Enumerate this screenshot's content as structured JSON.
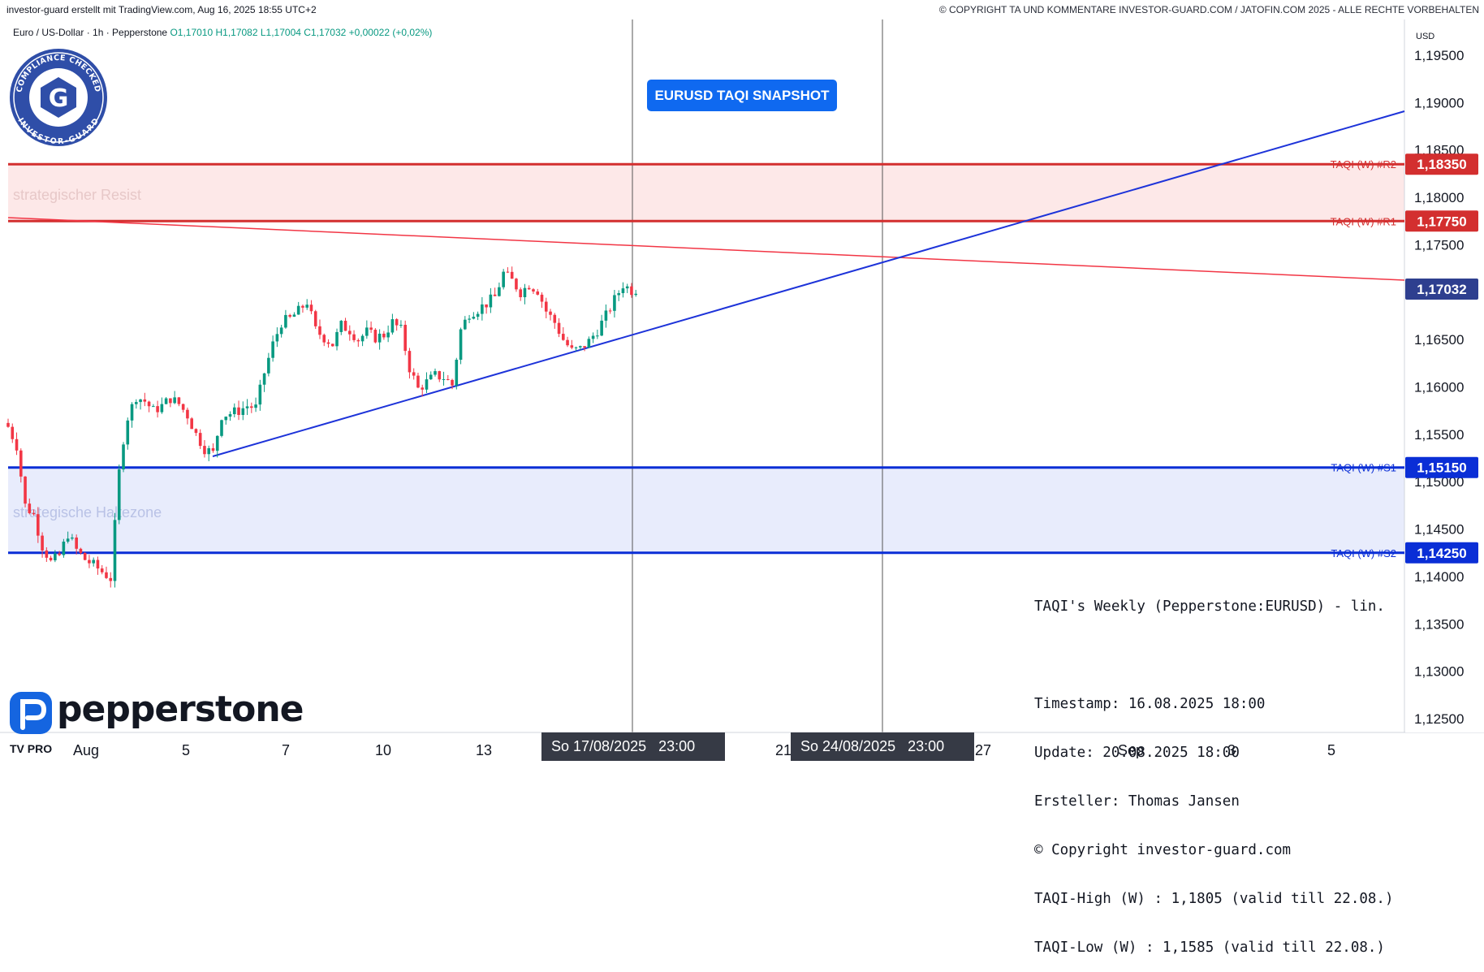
{
  "header": {
    "left": "investor-guard erstellt mit TradingView.com, Aug 16, 2025 18:55 UTC+2",
    "right": "© COPYRIGHT TA UND KOMMENTARE INVESTOR-GUARD.COM / JATOFIN.COM 2025 - ALLE RECHTE VORBEHALTEN"
  },
  "symbol": {
    "name": "Euro / US-Dollar · 1h · Pepperstone",
    "ohlc": "O1,17010 H1,17082 L1,17004 C1,17032 +0,00022 (+0,02%)"
  },
  "badge": {
    "label": "EURUSD TAQI SNAPSHOT",
    "color": "#0f69f0"
  },
  "seal": {
    "text_top": "COMPLIANCE CHECKED",
    "text_bottom": "INVESTOR-GUARD",
    "letter": "G"
  },
  "brand": {
    "name": "pepperstone",
    "tv": "TV PRO"
  },
  "info_box": {
    "title": "TAQI's Weekly (Pepperstone:EURUSD) - lin.",
    "lines": [
      "Timestamp: 16.08.2025 18:00",
      "Update: 20.08.2025 18:00",
      "Ersteller: Thomas Jansen",
      "© Copyright investor-guard.com",
      "TAQI-High (W) : 1,1805 (valid till 22.08.)",
      "TAQI-Low (W) : 1,1585 (valid till 22.08.)"
    ]
  },
  "date_badges": [
    {
      "date": "So 17/08/2025",
      "time": "23:00"
    },
    {
      "date": "So 24/08/2025",
      "time": "23:00"
    }
  ],
  "colors": {
    "up": "#089981",
    "down": "#f23645",
    "resist": "#d32f2f",
    "support": "#0a2ed6",
    "trend": "#1d33d9",
    "resist_zone": "#fde8e8",
    "support_zone": "#e8ecfc",
    "price": "#2e3f8f"
  },
  "chart_data": {
    "type": "candlestick",
    "price_axis": {
      "unit": "USD",
      "min": 1.1225,
      "max": 1.1985,
      "ticks": [
        "1,12500",
        "1,13000",
        "1,13500",
        "1,14000",
        "1,14500",
        "1,15000",
        "1,15500",
        "1,16000",
        "1,16500",
        "1,17000",
        "1,17500",
        "1,18000",
        "1,18500",
        "1,19000",
        "1,19500"
      ]
    },
    "x_axis_labels": [
      "Aug",
      "5",
      "7",
      "10",
      "13",
      "21",
      "27",
      "Sep",
      "3",
      "5"
    ],
    "zones": [
      {
        "label": "strategischer Resist",
        "from": 1.1775,
        "to": 1.1835
      },
      {
        "label": "strategische Haltezone",
        "from": 1.1425,
        "to": 1.1515
      }
    ],
    "levels": [
      {
        "name": "TAQI (W) #R2",
        "value": "1,18350",
        "price": 1.1835,
        "kind": "resist"
      },
      {
        "name": "TAQI (W) #R1",
        "value": "1,17750",
        "price": 1.1775,
        "kind": "resist"
      },
      {
        "name": "TAQI (W) #S1",
        "value": "1,15150",
        "price": 1.1515,
        "kind": "support"
      },
      {
        "name": "TAQI (W) #S2",
        "value": "1,14250",
        "price": 1.1425,
        "kind": "support"
      }
    ],
    "last_price": {
      "value": "1,17032",
      "price": 1.17032
    },
    "close_path": [
      [
        0,
        1.1558
      ],
      [
        2,
        1.1538
      ],
      [
        4,
        1.1475
      ],
      [
        6,
        1.1465
      ],
      [
        8,
        1.1432
      ],
      [
        10,
        1.1415
      ],
      [
        12,
        1.1422
      ],
      [
        14,
        1.1445
      ],
      [
        16,
        1.1428
      ],
      [
        18,
        1.1418
      ],
      [
        20,
        1.1412
      ],
      [
        22,
        1.1405
      ],
      [
        24,
        1.1398
      ],
      [
        26,
        1.151
      ],
      [
        27,
        1.1545
      ],
      [
        28,
        1.1568
      ],
      [
        30,
        1.159
      ],
      [
        32,
        1.1585
      ],
      [
        34,
        1.1575
      ],
      [
        36,
        1.158
      ],
      [
        38,
        1.1588
      ],
      [
        40,
        1.1582
      ],
      [
        42,
        1.157
      ],
      [
        44,
        1.155
      ],
      [
        46,
        1.1535
      ],
      [
        48,
        1.153
      ],
      [
        50,
        1.157
      ],
      [
        52,
        1.1572
      ],
      [
        54,
        1.1575
      ],
      [
        56,
        1.158
      ],
      [
        58,
        1.1578
      ],
      [
        60,
        1.1615
      ],
      [
        62,
        1.1645
      ],
      [
        64,
        1.1668
      ],
      [
        66,
        1.1672
      ],
      [
        68,
        1.168
      ],
      [
        70,
        1.169
      ],
      [
        72,
        1.166
      ],
      [
        74,
        1.1652
      ],
      [
        76,
        1.1645
      ],
      [
        78,
        1.1665
      ],
      [
        80,
        1.166
      ],
      [
        82,
        1.165
      ],
      [
        84,
        1.1658
      ],
      [
        86,
        1.1652
      ],
      [
        88,
        1.1655
      ],
      [
        90,
        1.1668
      ],
      [
        92,
        1.166
      ],
      [
        94,
        1.162
      ],
      [
        96,
        1.1598
      ],
      [
        98,
        1.1605
      ],
      [
        100,
        1.1612
      ],
      [
        102,
        1.161
      ],
      [
        104,
        1.1602
      ],
      [
        106,
        1.166
      ],
      [
        108,
        1.1678
      ],
      [
        110,
        1.1682
      ],
      [
        112,
        1.1688
      ],
      [
        114,
        1.1695
      ],
      [
        116,
        1.172
      ],
      [
        118,
        1.1712
      ],
      [
        120,
        1.17
      ],
      [
        122,
        1.1708
      ],
      [
        124,
        1.1702
      ],
      [
        126,
        1.168
      ],
      [
        128,
        1.1668
      ],
      [
        130,
        1.165
      ],
      [
        132,
        1.1638
      ],
      [
        134,
        1.164
      ],
      [
        136,
        1.1648
      ],
      [
        138,
        1.166
      ],
      [
        140,
        1.1675
      ],
      [
        142,
        1.1692
      ],
      [
        144,
        1.1708
      ],
      [
        146,
        1.1702
      ],
      [
        147,
        1.17032
      ]
    ]
  }
}
